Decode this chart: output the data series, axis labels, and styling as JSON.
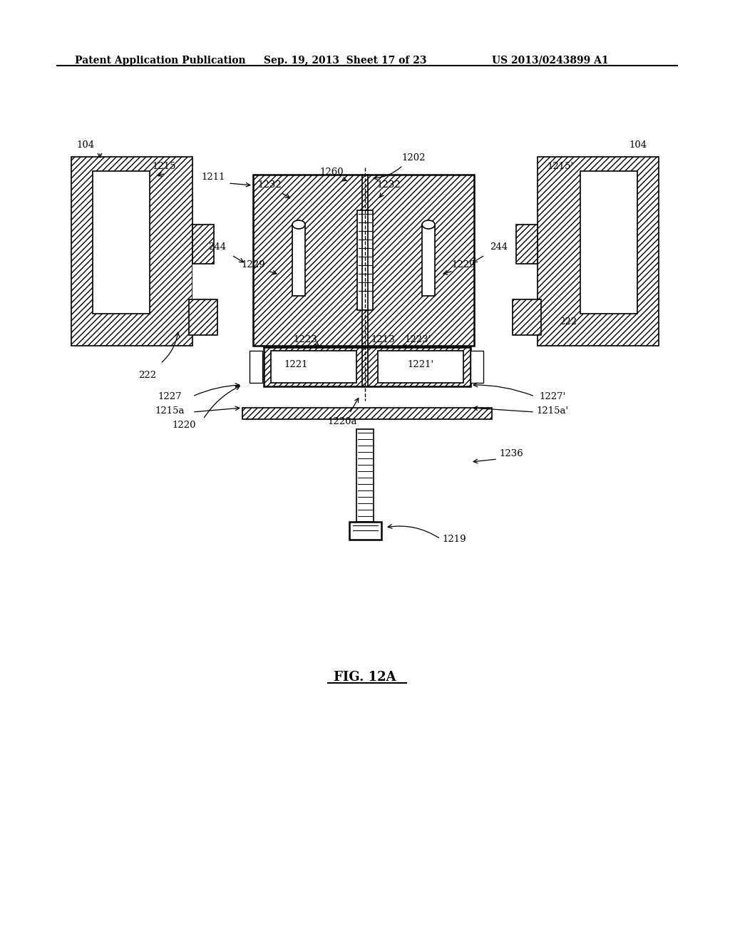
{
  "bg_color": "#ffffff",
  "title_line1": "Patent Application Publication",
  "title_line2": "Sep. 19, 2013  Sheet 17 of 23",
  "title_line3": "US 2013/0243899 A1",
  "figure_label": "FIG. 12A",
  "labels": {
    "104_left": "104",
    "104_right": "104",
    "1202": "1202",
    "1215": "1215",
    "1215_prime": "1215'",
    "1211": "1211",
    "1260": "1260",
    "1232_left": "1232",
    "1232_right": "1232",
    "244_left": "244",
    "244_right": "244",
    "1229_left": "1229",
    "1229_right": "1229",
    "222_left": "222",
    "222_right": "222",
    "1223": "1223",
    "1213": "1213",
    "1223_prime": "1223'",
    "1221": "1221",
    "1221_prime": "1221'",
    "1227": "1227",
    "1227_prime": "1227'",
    "1215a": "1215a",
    "1215a_prime": "1215a'",
    "1220": "1220",
    "1220a": "1220a",
    "1236": "1236",
    "1219": "1219"
  },
  "hatch_pattern": "////",
  "line_color": "#000000",
  "fill_color": "#ffffff",
  "hatch_color": "#000000"
}
